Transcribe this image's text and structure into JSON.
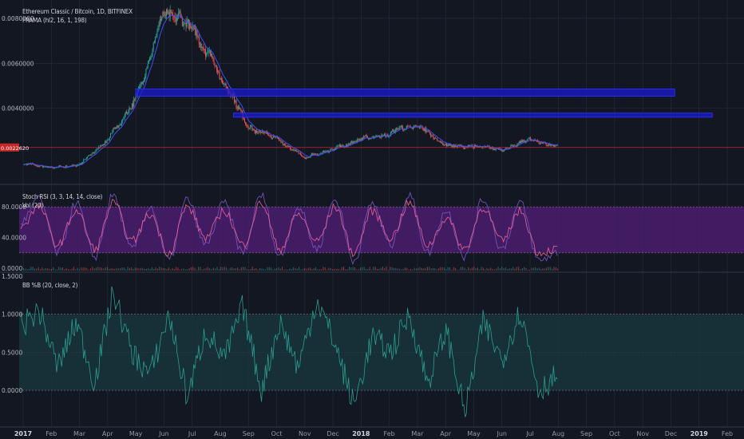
{
  "header": {
    "symbol": "Ethereum Classic / Bitcoin, 1D, BITFINEX",
    "frama": "FRAMA (hl2, 16, 1, 198)"
  },
  "price_axis": {
    "labels": [
      "0.0080000",
      "0.0060000",
      "0.0040000"
    ],
    "last_price": "0.0022620"
  },
  "stoch_pane": {
    "legend_stoch": "Stoch RSI (3, 3, 14, 14, close)",
    "legend_vol": "Vol (20)",
    "labels": [
      "80.0000",
      "40.0000",
      "0.0000"
    ]
  },
  "bb_pane": {
    "legend": "BB %B (20, close, 2)",
    "labels": [
      "1.5000",
      "1.0000",
      "0.5000",
      "0.0000"
    ]
  },
  "time_axis": {
    "labels": [
      "2017",
      "Feb",
      "Mar",
      "Apr",
      "May",
      "Jun",
      "Jul",
      "Aug",
      "Sep",
      "Oct",
      "Nov",
      "Dec",
      "2018",
      "Feb",
      "Mar",
      "Apr",
      "May",
      "Jun",
      "Jul",
      "Aug",
      "Sep",
      "Oct",
      "Nov",
      "Dec",
      "2019",
      "Feb"
    ]
  },
  "colors": {
    "background": "#131722",
    "grid": "#2a2e39",
    "up": "#26a69a",
    "down": "#ef5350",
    "frama": "#3f51f5",
    "zone": "#1a1ad0",
    "stoch_k": "#7e57c2",
    "stoch_d": "#f06292",
    "stoch_band": "#4a1d6f",
    "bb_line": "#2a9d8f",
    "bb_band": "#18333a",
    "last_price_line": "#c62828"
  },
  "chart_data": [
    {
      "type": "candlestick",
      "title": "Ethereum Classic / Bitcoin, 1D, BITFINEX",
      "indicator": "FRAMA (hl2, 16, 1, 198)",
      "x": [
        "2017-01",
        "2017-02",
        "2017-03",
        "2017-04",
        "2017-05",
        "2017-06",
        "2017-07",
        "2017-08",
        "2017-09",
        "2017-10",
        "2017-11",
        "2017-12",
        "2018-01",
        "2018-02",
        "2018-03",
        "2018-04",
        "2018-05",
        "2018-06",
        "2018-07",
        "2018-08-01"
      ],
      "close": [
        0.00155,
        0.00135,
        0.0015,
        0.0026,
        0.0044,
        0.0082,
        0.0076,
        0.0055,
        0.0032,
        0.0026,
        0.0018,
        0.0022,
        0.0026,
        0.0029,
        0.0033,
        0.0023,
        0.0023,
        0.0022,
        0.0026,
        0.00226
      ],
      "ylim": [
        0.0008,
        0.0086
      ],
      "horizontal_zones": [
        {
          "from": "2017-05-01",
          "to": "2018-12-05",
          "price": 0.0047
        },
        {
          "from": "2017-08-15",
          "to": "2019-01-15",
          "price": 0.0037
        }
      ],
      "last_price": 0.002262
    },
    {
      "type": "line",
      "title": "Stoch RSI (3, 3, 14, 14, close)",
      "series": [
        {
          "name": "K",
          "values": [
            60,
            90,
            20,
            85,
            15,
            95,
            25,
            80,
            10,
            90,
            30,
            85,
            20,
            95,
            15,
            80,
            25,
            90,
            10,
            85,
            30,
            95,
            20,
            75,
            15,
            90,
            25,
            85,
            10,
            20
          ]
        },
        {
          "name": "D",
          "values": [
            55,
            80,
            30,
            75,
            25,
            85,
            35,
            70,
            20,
            80,
            40,
            75,
            30,
            85,
            25,
            70,
            35,
            80,
            20,
            75,
            40,
            85,
            30,
            65,
            25,
            80,
            35,
            75,
            20,
            25
          ]
        }
      ],
      "bands": [
        20,
        80
      ],
      "ylim": [
        0,
        100
      ]
    },
    {
      "type": "line",
      "title": "BB %B (20, close, 2)",
      "values": [
        0.85,
        1.05,
        0.3,
        0.9,
        0.1,
        1.3,
        0.5,
        0.2,
        1.0,
        -0.1,
        0.8,
        0.4,
        1.1,
        0.0,
        0.9,
        0.3,
        1.2,
        0.6,
        -0.2,
        0.7,
        0.5,
        1.0,
        0.1,
        0.8,
        -0.3,
        0.9,
        0.4,
        1.05,
        0.0,
        0.2
      ],
      "bands": [
        0,
        1
      ],
      "ylim": [
        -0.45,
        1.5
      ]
    }
  ]
}
